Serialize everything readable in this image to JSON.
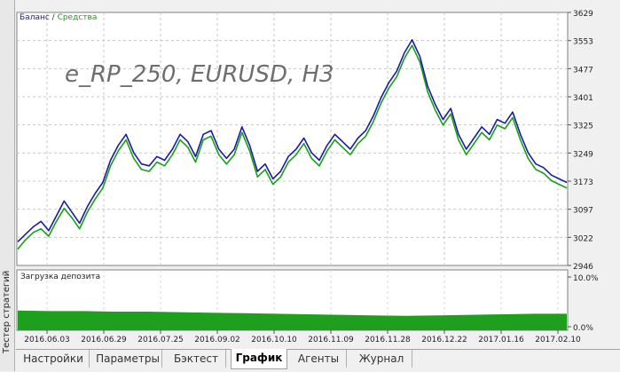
{
  "side_panel": {
    "label": "Тестер стратегий"
  },
  "chart_data": [
    {
      "type": "line",
      "legend": {
        "balance": "Баланс",
        "separator": " / ",
        "equity": "Средства"
      },
      "watermark": "e_RP_250, EURUSD, H3",
      "y_ticks": [
        "3629",
        "3553",
        "3477",
        "3401",
        "3325",
        "3249",
        "3173",
        "3097",
        "3022",
        "2946"
      ],
      "ylim": [
        2946,
        3629
      ],
      "x_ticks": [
        "2016.06.03",
        "2016.06.29",
        "2016.07.25",
        "2016.09.02",
        "2016.10.10",
        "2016.11.09",
        "2016.11.28",
        "2016.12.22",
        "2017.01.16",
        "2017.02.10"
      ],
      "grid": true,
      "colors": {
        "balance": "#1a1aa6",
        "equity": "#16a016"
      },
      "series": [
        {
          "name": "Баланс",
          "values": [
            3010,
            3030,
            3050,
            3065,
            3040,
            3080,
            3120,
            3090,
            3060,
            3105,
            3140,
            3170,
            3230,
            3270,
            3300,
            3250,
            3220,
            3215,
            3240,
            3230,
            3260,
            3300,
            3280,
            3240,
            3300,
            3310,
            3260,
            3235,
            3260,
            3320,
            3270,
            3200,
            3220,
            3180,
            3200,
            3240,
            3260,
            3290,
            3250,
            3230,
            3270,
            3300,
            3280,
            3260,
            3290,
            3310,
            3350,
            3400,
            3440,
            3470,
            3520,
            3555,
            3510,
            3430,
            3380,
            3340,
            3370,
            3300,
            3260,
            3290,
            3320,
            3300,
            3340,
            3330,
            3360,
            3300,
            3250,
            3220,
            3210,
            3190,
            3180,
            3170
          ]
        },
        {
          "name": "Средства",
          "values": [
            2990,
            3015,
            3035,
            3045,
            3025,
            3065,
            3100,
            3075,
            3045,
            3090,
            3125,
            3155,
            3215,
            3255,
            3285,
            3235,
            3205,
            3200,
            3225,
            3215,
            3245,
            3285,
            3265,
            3225,
            3285,
            3295,
            3245,
            3220,
            3245,
            3305,
            3255,
            3185,
            3205,
            3165,
            3185,
            3225,
            3245,
            3275,
            3235,
            3215,
            3255,
            3285,
            3265,
            3245,
            3275,
            3295,
            3335,
            3385,
            3425,
            3455,
            3505,
            3540,
            3495,
            3415,
            3365,
            3325,
            3355,
            3285,
            3245,
            3275,
            3305,
            3285,
            3325,
            3315,
            3345,
            3285,
            3235,
            3205,
            3195,
            3175,
            3165,
            3155
          ]
        }
      ]
    },
    {
      "type": "area",
      "title": "Загрузка депозита",
      "y_ticks": [
        "10.0%",
        "0.0%"
      ],
      "ylim": [
        0,
        10
      ],
      "color": "#1ea01e",
      "values": [
        3.7,
        3.6,
        3.6,
        3.5,
        3.5,
        3.4,
        3.3,
        3.2,
        3.1,
        3.0,
        2.9,
        2.8,
        2.7,
        2.8,
        2.9,
        3.0,
        3.1,
        3.1
      ]
    }
  ],
  "tabs": [
    {
      "label": "Настройки",
      "active": false
    },
    {
      "label": "Параметры",
      "active": false
    },
    {
      "label": "Бэктест",
      "active": false
    },
    {
      "label": "График",
      "active": true
    },
    {
      "label": "Агенты",
      "active": false
    },
    {
      "label": "Журнал",
      "active": false
    }
  ]
}
